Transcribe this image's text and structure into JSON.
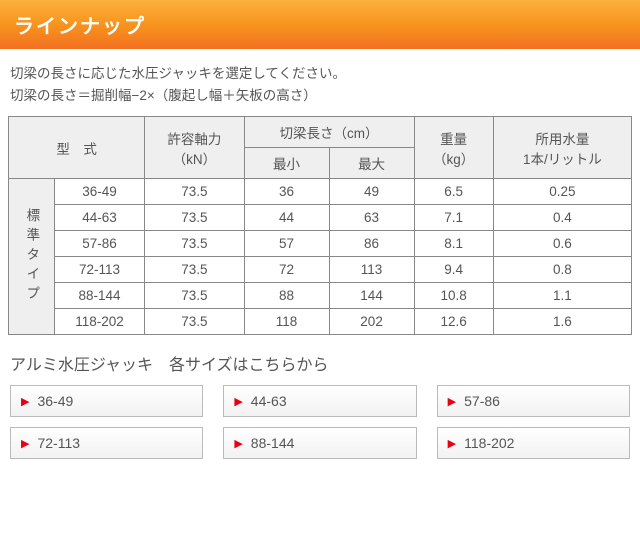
{
  "header": {
    "title": "ラインナップ"
  },
  "intro": {
    "line1": "切梁の長さに応じた水圧ジャッキを選定してください。",
    "line2": "切梁の長さ＝掘削幅−2×（腹起し幅＋矢板の高さ）"
  },
  "table": {
    "headers": {
      "model": "型　式",
      "capacity_line1": "許容軸力",
      "capacity_line2": "（kN）",
      "length_top": "切梁長さ（cm）",
      "length_min": "最小",
      "length_max": "最大",
      "weight_line1": "重量",
      "weight_line2": "（kg）",
      "water_line1": "所用水量",
      "water_line2": "1本/リットル"
    },
    "group_label": "標準タイプ",
    "rows": [
      {
        "model": "36-49",
        "capacity": "73.5",
        "min": "36",
        "max": "49",
        "weight": "6.5",
        "water": "0.25"
      },
      {
        "model": "44-63",
        "capacity": "73.5",
        "min": "44",
        "max": "63",
        "weight": "7.1",
        "water": "0.4"
      },
      {
        "model": "57-86",
        "capacity": "73.5",
        "min": "57",
        "max": "86",
        "weight": "8.1",
        "water": "0.6"
      },
      {
        "model": "72-113",
        "capacity": "73.5",
        "min": "72",
        "max": "113",
        "weight": "9.4",
        "water": "0.8"
      },
      {
        "model": "88-144",
        "capacity": "73.5",
        "min": "88",
        "max": "144",
        "weight": "10.8",
        "water": "1.1"
      },
      {
        "model": "118-202",
        "capacity": "73.5",
        "min": "118",
        "max": "202",
        "weight": "12.6",
        "water": "1.6"
      }
    ]
  },
  "subhead": "アルミ水圧ジャッキ　各サイズはこちらから",
  "buttons": {
    "row1": [
      "36-49",
      "44-63",
      "57-86"
    ],
    "row2": [
      "72-113",
      "88-144",
      "118-202"
    ]
  },
  "styling": {
    "header_gradient": [
      "#fbb040",
      "#f7941d",
      "#f37021"
    ],
    "text_color": "#555555",
    "border_color": "#888888",
    "th_bg": "#efefef",
    "accent_triangle": "#e60012",
    "btn_border": "#bbbbbb"
  }
}
